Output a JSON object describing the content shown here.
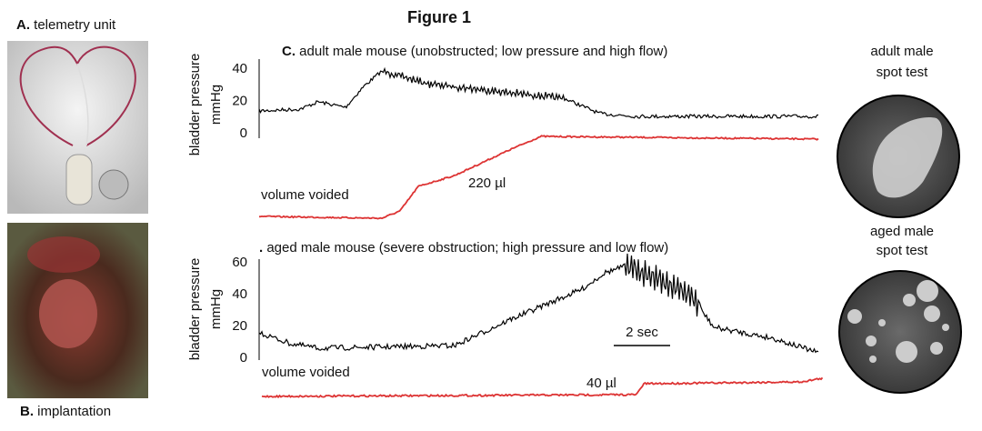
{
  "title": "Figure 1",
  "panel_a": {
    "label": "A.",
    "text": "telemetry unit"
  },
  "panel_b": {
    "label": "B.",
    "text": "implantation"
  },
  "panel_c": {
    "label": "C.",
    "title": "adult male mouse (unobstructed; low pressure and high flow)",
    "y_axis": "bladder pressure",
    "y_unit": "mmHg",
    "yticks": [
      40,
      20,
      0
    ],
    "volume_label": "volume voided",
    "volume": "220 µl"
  },
  "panel_d": {
    "label": ".",
    "title": "aged male mouse (severe obstruction; high pressure and low flow)",
    "y_axis": "bladder pressure",
    "y_unit": "mmHg",
    "yticks": [
      60,
      40,
      20,
      0
    ],
    "volume_label": "volume voided",
    "volume": "40 µl",
    "scale_bar": "2 sec"
  },
  "spot_tests": [
    {
      "line1": "adult male",
      "line2": "spot test"
    },
    {
      "line1": "aged male",
      "line2": "spot test"
    }
  ]
}
